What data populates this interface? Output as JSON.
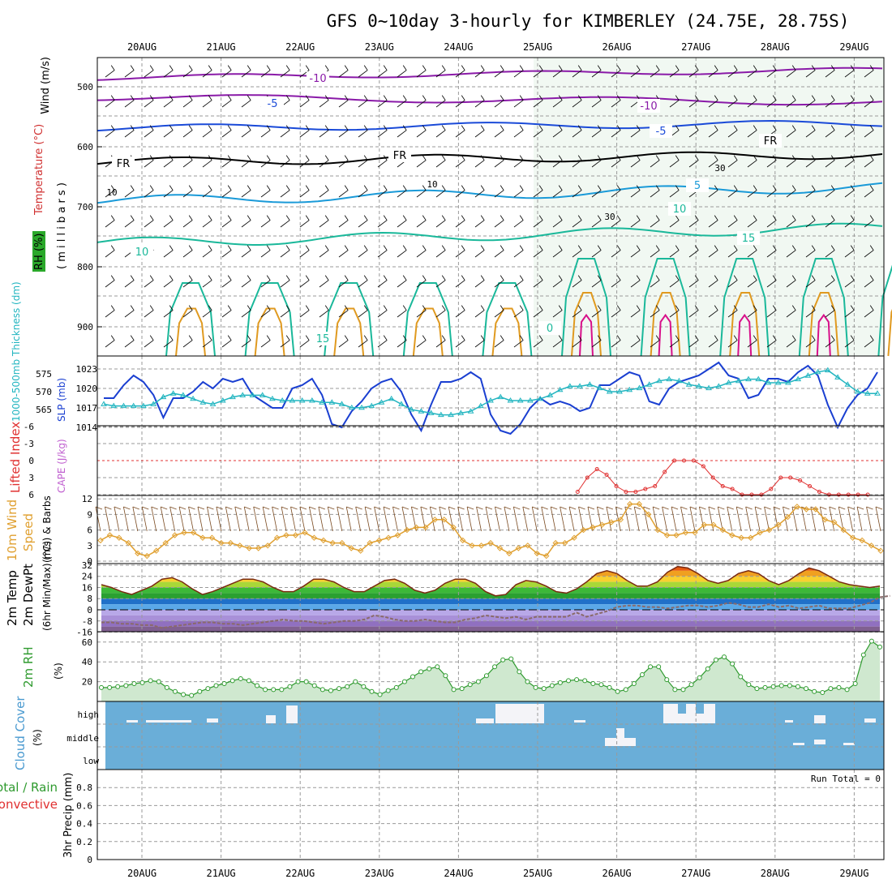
{
  "title": "GFS 0~10day 3-hourly for KIMBERLEY (24.75E, 28.75S)",
  "dates": [
    "20AUG",
    "21AUG",
    "22AUG",
    "23AUG",
    "24AUG",
    "25AUG",
    "26AUG",
    "27AUG",
    "28AUG",
    "29AUG"
  ],
  "colors": {
    "slp": "#1a3fd1",
    "thickness": "#22b5c0",
    "lifted": "#e03030",
    "wind": "#e0a030",
    "barb": "#7a4a20",
    "temp_outline": "#7a2a10",
    "dew": "#8a6a6a",
    "rh": "#2e9a2e",
    "cloud": "#6aaed8",
    "iso_neg10": "#8a1aa8",
    "iso_neg5": "#1a4ad8",
    "iso_fr": "#000000",
    "iso_5": "#1a9ad8",
    "iso_10": "#1ab89a",
    "iso_15": "#1ab89a",
    "iso_warm1": "#e09a20",
    "iso_warm2": "#e07a10",
    "iso_warm3": "#d8108a"
  },
  "upper_air": {
    "ylabel_wind": "Wind (m/s)",
    "ylabel_temp": "Temperature (°C)",
    "ylabel_rh": "RH (%)",
    "ylabel_levels": "( m i l l i b a r s )",
    "ticks": [
      "500",
      "600",
      "700",
      "800",
      "900"
    ],
    "isotherm_labels": [
      {
        "text": "-10",
        "iso": "iso_neg10"
      },
      {
        "text": "-10",
        "iso": "iso_neg10"
      },
      {
        "text": "-5",
        "iso": "iso_neg5"
      },
      {
        "text": "-5",
        "iso": "iso_neg5"
      },
      {
        "text": "FR",
        "iso": "iso_fr"
      },
      {
        "text": "FR",
        "iso": "iso_fr"
      },
      {
        "text": "FR",
        "iso": "iso_fr"
      },
      {
        "text": "5",
        "iso": "iso_5"
      },
      {
        "text": "10",
        "iso": "iso_10"
      },
      {
        "text": "10",
        "iso": "iso_10"
      },
      {
        "text": "15",
        "iso": "iso_15"
      },
      {
        "text": "15",
        "iso": "iso_15"
      },
      {
        "text": "0",
        "iso": "iso_15"
      }
    ],
    "rh_labels": [
      "10",
      "10",
      "30",
      "30"
    ]
  },
  "chart_data": [
    {
      "type": "line",
      "name": "SLP and 1000-500mb thickness",
      "ylabel_left": "1000-500mb Thickness (dm)",
      "ylabel_right": "SLP (mb)",
      "left_ticks": [
        "575",
        "570",
        "565"
      ],
      "right_ticks": [
        "1023",
        "1020",
        "1017",
        "1014"
      ],
      "series": [
        {
          "name": "SLP (mb)",
          "color_key": "slp",
          "axis": "right",
          "values": [
            1018.5,
            1018.5,
            1020.5,
            1022,
            1021,
            1019,
            1015.5,
            1018.5,
            1018.5,
            1019.5,
            1021,
            1020,
            1021.5,
            1021,
            1021.5,
            1019,
            1018,
            1017,
            1017,
            1020,
            1020.5,
            1021.5,
            1019,
            1014.5,
            1014,
            1016.5,
            1018,
            1020,
            1021,
            1021.5,
            1019.5,
            1016,
            1013.5,
            1017.5,
            1021,
            1021,
            1021.5,
            1022.5,
            1021.5,
            1016,
            1013.5,
            1013,
            1014.5,
            1017,
            1018.5,
            1017.5,
            1018,
            1017.5,
            1016.5,
            1017,
            1020.5,
            1020.5,
            1021.5,
            1022.5,
            1022,
            1018,
            1017.5,
            1020,
            1021,
            1021.5,
            1022,
            1023,
            1024,
            1022,
            1021.5,
            1018.5,
            1019,
            1021.5,
            1021.5,
            1021,
            1022.5,
            1023.5,
            1022,
            1017.5,
            1014,
            1017,
            1019,
            1020,
            1022.5
          ]
        },
        {
          "name": "1000-500mb Thickness (dm)",
          "color_key": "thickness",
          "axis": "left",
          "values": [
            566.5,
            566,
            566,
            566,
            566,
            566.5,
            568.5,
            569.5,
            569,
            568,
            567,
            566.5,
            567.5,
            568.5,
            569,
            569,
            569,
            568,
            567.5,
            567.5,
            567.5,
            567.5,
            567,
            567,
            566.5,
            565.5,
            565.5,
            566,
            567,
            568,
            566.5,
            565,
            564.5,
            564,
            563.5,
            563.5,
            564,
            564.5,
            566,
            567.5,
            568.5,
            567.5,
            567.5,
            567.5,
            568,
            569,
            570.5,
            571.5,
            571.5,
            572,
            571,
            570,
            570,
            570.5,
            571,
            572,
            573,
            573.5,
            573,
            572,
            571.5,
            571,
            571.5,
            572.5,
            573,
            573.5,
            573.5,
            572.5,
            572.5,
            572.5,
            573.5,
            574.5,
            575.5,
            576,
            574,
            572,
            570,
            569.5,
            569.5
          ]
        }
      ]
    },
    {
      "type": "line",
      "name": "Lifted Index and CAPE",
      "ylabel_left": "Lifted Index",
      "ylabel_right": "CAPE (J/kg)",
      "ticks": [
        "-6",
        "-3",
        "0",
        "3",
        "6"
      ],
      "ylim": [
        6,
        -6
      ],
      "series": [
        {
          "name": "Lifted Index",
          "color_key": "lifted",
          "values": [
            null,
            null,
            null,
            null,
            null,
            null,
            null,
            null,
            null,
            null,
            null,
            null,
            null,
            null,
            null,
            null,
            null,
            null,
            null,
            null,
            null,
            null,
            null,
            null,
            null,
            null,
            null,
            null,
            null,
            null,
            null,
            null,
            null,
            null,
            null,
            null,
            null,
            null,
            null,
            null,
            null,
            null,
            null,
            null,
            null,
            null,
            null,
            null,
            null,
            5.5,
            3,
            1.5,
            2.5,
            4.5,
            5.5,
            5.5,
            5,
            4.5,
            2,
            0,
            0,
            0,
            1,
            3,
            4.5,
            5,
            6,
            6,
            6,
            5,
            3,
            3,
            3.5,
            4.5,
            5.5,
            6,
            6,
            6,
            6,
            6,
            null
          ]
        }
      ]
    },
    {
      "type": "line",
      "name": "10m Wind Speed and Barbs",
      "ylabel_left": "10m Wind",
      "ylabel_right": "Speed",
      "ylabel_third": "(m/s) & Barbs",
      "ticks": [
        "12",
        "9",
        "6",
        "3",
        "0"
      ],
      "ylim": [
        0,
        12
      ],
      "series": [
        {
          "name": "10m wind speed (m/s)",
          "color_key": "wind",
          "values": [
            4,
            5,
            4.5,
            3.5,
            1.5,
            1,
            2,
            3.5,
            5,
            5.5,
            5.5,
            4.5,
            4.5,
            3.5,
            3.5,
            3,
            2.5,
            2.5,
            3,
            4.5,
            5,
            5,
            5.5,
            4.5,
            4,
            3.5,
            3.5,
            2.5,
            2,
            3.5,
            4,
            4.5,
            5,
            6,
            6.5,
            6.5,
            8,
            8,
            6.5,
            4,
            3,
            3,
            3.5,
            2.5,
            1.5,
            2.5,
            3,
            1.5,
            1,
            3.5,
            3.5,
            4.5,
            6,
            6.5,
            7,
            7.5,
            8,
            11,
            11,
            9,
            6,
            5,
            5,
            5.5,
            5.5,
            7,
            7,
            6,
            5,
            4.5,
            4.5,
            5.5,
            6,
            7,
            8.5,
            10.5,
            10,
            10,
            8,
            7.5,
            6,
            4.5,
            4,
            3,
            2
          ]
        }
      ]
    },
    {
      "type": "area",
      "name": "2m Temp and DewPt",
      "ylabel_left": "2m Temp",
      "ylabel_right": "2m DewPt",
      "ylabel_third": "(6hr Min/Max) (°C)",
      "ticks": [
        "32",
        "24",
        "16",
        "8",
        "0",
        "-8",
        "-16"
      ],
      "ylim": [
        -16,
        32
      ],
      "series": [
        {
          "name": "2m Temperature (°C)",
          "color_key": "temp_outline",
          "values": [
            18,
            16,
            13,
            11,
            14,
            17,
            22,
            23,
            20,
            15,
            11,
            13,
            16,
            19,
            22,
            22,
            20,
            16,
            13,
            13,
            17,
            22,
            22,
            20,
            16,
            13,
            13,
            17,
            21,
            22,
            19,
            14,
            12,
            14,
            19,
            22,
            22,
            19,
            13,
            10,
            11,
            18,
            21,
            20,
            17,
            13,
            12,
            15,
            20,
            26,
            28,
            26,
            21,
            17,
            17,
            20,
            27,
            31,
            30,
            26,
            21,
            19,
            21,
            26,
            28,
            26,
            21,
            18,
            21,
            26,
            30,
            28,
            24,
            20,
            18,
            17,
            16,
            17
          ]
        },
        {
          "name": "2m Dew Point (°C)",
          "color_key": "dew",
          "values": [
            -9,
            -9,
            -10,
            -10,
            -11,
            -11,
            -13,
            -12,
            -11,
            -10,
            -9,
            -9,
            -10,
            -10,
            -11,
            -10,
            -9,
            -8,
            -7,
            -8,
            -8,
            -9,
            -10,
            -9,
            -8,
            -8,
            -7,
            -4,
            -5,
            -7,
            -8,
            -8,
            -7,
            -8,
            -9,
            -9,
            -7,
            -6,
            -4,
            -5,
            -6,
            -5,
            -7,
            -5,
            -5,
            -5,
            -5,
            -2,
            -5,
            -3,
            -1,
            2,
            3,
            3,
            2,
            2,
            1,
            2,
            3,
            3,
            2,
            3,
            5,
            4,
            2,
            2,
            4,
            2,
            3,
            1,
            2,
            3,
            1,
            1,
            1,
            3,
            5,
            9,
            10
          ]
        }
      ]
    },
    {
      "type": "area",
      "name": "2m RH",
      "ylabel_left": "2m RH",
      "ylabel_right": "(%)",
      "ticks": [
        "60",
        "40",
        "20"
      ],
      "ylim": [
        0,
        65
      ],
      "series": [
        {
          "name": "2m RH (%)",
          "color_key": "rh",
          "values": [
            14,
            14,
            15,
            16,
            18,
            19,
            21,
            20,
            14,
            10,
            7,
            6,
            10,
            13,
            16,
            18,
            21,
            23,
            21,
            16,
            12,
            12,
            12,
            15,
            20,
            20,
            16,
            12,
            11,
            13,
            15,
            20,
            15,
            10,
            7,
            11,
            14,
            20,
            25,
            30,
            33,
            35,
            26,
            12,
            13,
            17,
            20,
            26,
            35,
            42,
            43,
            30,
            20,
            14,
            13,
            16,
            19,
            21,
            22,
            21,
            18,
            17,
            14,
            10,
            12,
            18,
            27,
            35,
            35,
            22,
            12,
            12,
            17,
            24,
            33,
            42,
            45,
            38,
            25,
            17,
            13,
            14,
            15,
            16,
            16,
            15,
            13,
            10,
            9,
            13,
            14,
            12,
            18,
            47,
            61,
            55
          ]
        }
      ]
    },
    {
      "type": "heatmap",
      "name": "Cloud Cover",
      "ylabel_left": "Cloud Cover",
      "ylabel_right": "(%)",
      "rows": [
        "high",
        "middle",
        "low"
      ]
    },
    {
      "type": "line",
      "name": "3hr Precip",
      "ylabel_left": "Total / Rain",
      "ylabel_left2": "Convective",
      "ylabel_right": "3hr Precip (mm)",
      "ticks": [
        "0.8",
        "0.6",
        "0.4",
        "0.2",
        "0"
      ],
      "ylim": [
        0,
        1
      ],
      "run_total": "Run Total = 0",
      "series": []
    }
  ]
}
